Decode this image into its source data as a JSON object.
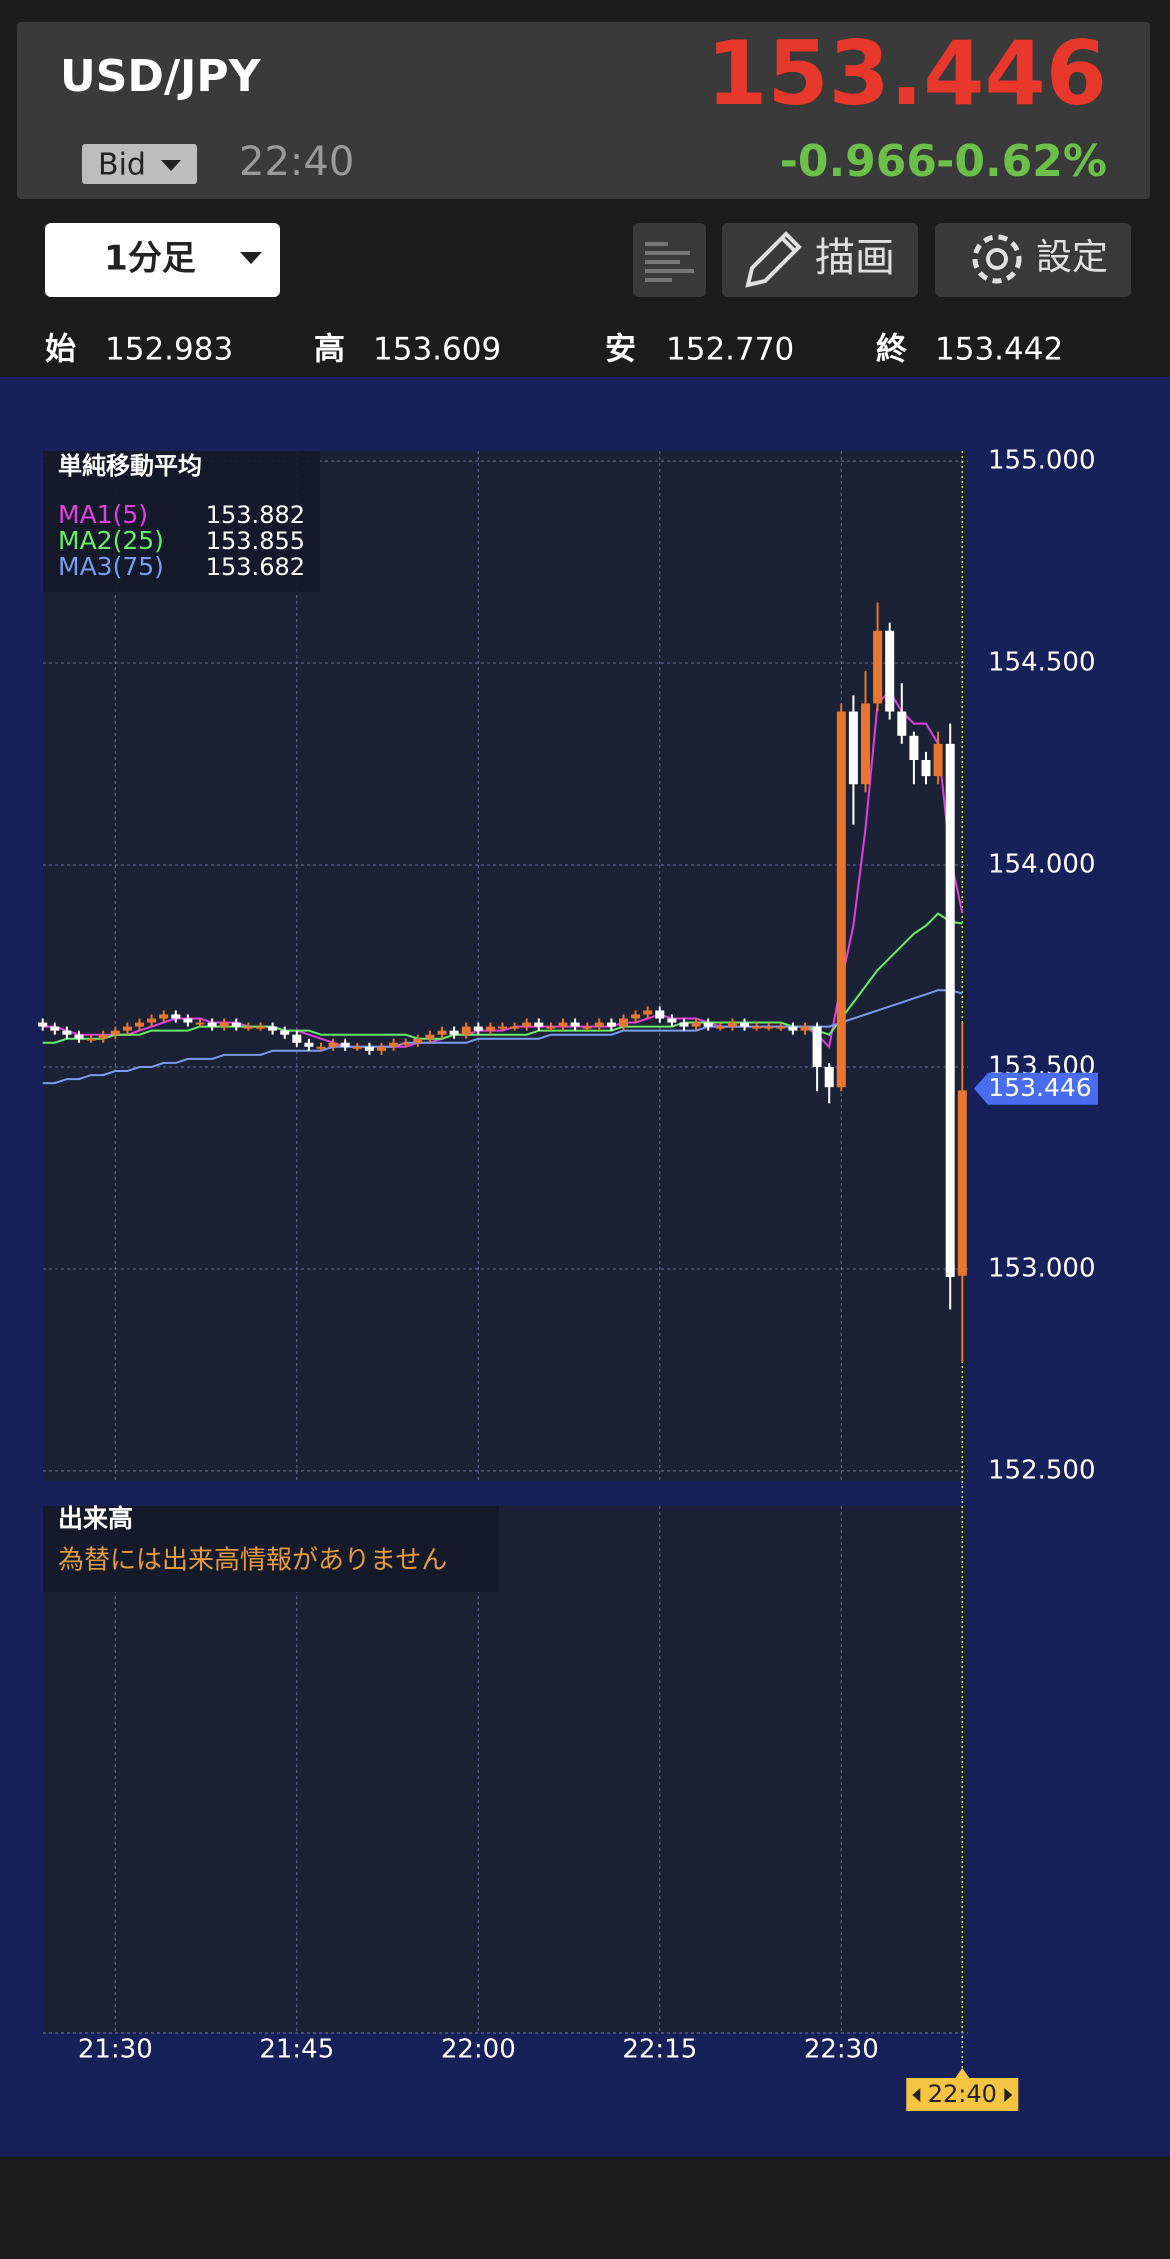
{
  "header": {
    "symbol": "USD/JPY",
    "price": 153.446,
    "price_type": "Bid",
    "time": "22:40",
    "change": -0.966,
    "change_pct": "-0.62%"
  },
  "toolbar": {
    "timeframe": "1分足",
    "draw": "描画",
    "settings": "設定"
  },
  "ohlc_summary": [
    {
      "label": "始",
      "value": "152.983"
    },
    {
      "label": "高",
      "value": "153.609"
    },
    {
      "label": "安",
      "value": "152.770"
    },
    {
      "label": "終",
      "value": "153.442"
    }
  ],
  "chart_data": {
    "type": "candlestick",
    "indicator_title": "単純移動平均",
    "categories": [
      null,
      null,
      null,
      null,
      null,
      null,
      "21:30",
      null,
      null,
      null,
      null,
      null,
      null,
      null,
      null,
      null,
      null,
      null,
      null,
      null,
      null,
      "21:45",
      null,
      null,
      null,
      null,
      null,
      null,
      null,
      null,
      null,
      null,
      null,
      null,
      null,
      null,
      "22:00",
      null,
      null,
      null,
      null,
      null,
      null,
      null,
      null,
      null,
      null,
      null,
      null,
      null,
      null,
      "22:15",
      null,
      null,
      null,
      null,
      null,
      null,
      null,
      null,
      null,
      null,
      null,
      null,
      null,
      null,
      "22:30",
      null,
      null,
      null,
      null,
      null,
      null,
      null,
      null,
      null,
      "22:40"
    ],
    "open": [
      153.61,
      153.6,
      153.59,
      153.58,
      153.57,
      153.57,
      153.58,
      153.59,
      153.6,
      153.61,
      153.62,
      153.63,
      153.62,
      153.61,
      153.61,
      153.6,
      153.61,
      153.6,
      153.6,
      153.6,
      153.59,
      153.58,
      153.56,
      153.55,
      153.55,
      153.56,
      153.55,
      153.55,
      153.54,
      153.55,
      153.56,
      153.56,
      153.57,
      153.58,
      153.59,
      153.58,
      153.6,
      153.59,
      153.6,
      153.6,
      153.6,
      153.61,
      153.6,
      153.6,
      153.61,
      153.6,
      153.6,
      153.61,
      153.6,
      153.62,
      153.63,
      153.64,
      153.62,
      153.61,
      153.6,
      153.61,
      153.6,
      153.6,
      153.61,
      153.6,
      153.6,
      153.6,
      153.6,
      153.59,
      153.6,
      153.5,
      153.45,
      154.38,
      154.2,
      154.4,
      154.58,
      154.38,
      154.32,
      154.26,
      154.22,
      154.3,
      152.983
    ],
    "high": [
      153.62,
      153.61,
      153.6,
      153.59,
      153.58,
      153.59,
      153.6,
      153.61,
      153.62,
      153.63,
      153.64,
      153.64,
      153.63,
      153.62,
      153.62,
      153.62,
      153.62,
      153.61,
      153.61,
      153.61,
      153.6,
      153.59,
      153.57,
      153.56,
      153.57,
      153.57,
      153.56,
      153.56,
      153.56,
      153.57,
      153.57,
      153.58,
      153.59,
      153.6,
      153.6,
      153.61,
      153.61,
      153.61,
      153.61,
      153.61,
      153.62,
      153.62,
      153.61,
      153.62,
      153.62,
      153.61,
      153.62,
      153.62,
      153.63,
      153.64,
      153.65,
      153.65,
      153.63,
      153.62,
      153.62,
      153.62,
      153.61,
      153.62,
      153.62,
      153.61,
      153.61,
      153.61,
      153.61,
      153.61,
      153.61,
      153.51,
      154.4,
      154.42,
      154.48,
      154.65,
      154.6,
      154.45,
      154.33,
      154.28,
      154.33,
      154.35,
      153.609
    ],
    "low": [
      153.59,
      153.58,
      153.57,
      153.56,
      153.56,
      153.56,
      153.57,
      153.58,
      153.59,
      153.6,
      153.61,
      153.61,
      153.6,
      153.6,
      153.59,
      153.59,
      153.59,
      153.59,
      153.59,
      153.58,
      153.57,
      153.55,
      153.54,
      153.54,
      153.54,
      153.54,
      153.54,
      153.53,
      153.53,
      153.54,
      153.55,
      153.55,
      153.56,
      153.57,
      153.57,
      153.57,
      153.58,
      153.58,
      153.59,
      153.59,
      153.59,
      153.59,
      153.59,
      153.59,
      153.59,
      153.59,
      153.59,
      153.59,
      153.59,
      153.61,
      153.62,
      153.61,
      153.6,
      153.59,
      153.59,
      153.59,
      153.59,
      153.59,
      153.59,
      153.59,
      153.59,
      153.59,
      153.58,
      153.58,
      153.44,
      153.41,
      153.44,
      154.1,
      154.18,
      154.38,
      154.36,
      154.3,
      154.2,
      154.2,
      154.2,
      152.9,
      152.77
    ],
    "close": [
      153.6,
      153.59,
      153.58,
      153.57,
      153.57,
      153.58,
      153.59,
      153.6,
      153.61,
      153.62,
      153.63,
      153.62,
      153.61,
      153.61,
      153.6,
      153.61,
      153.6,
      153.6,
      153.6,
      153.59,
      153.58,
      153.56,
      153.55,
      153.55,
      153.56,
      153.55,
      153.55,
      153.54,
      153.55,
      153.56,
      153.56,
      153.57,
      153.58,
      153.59,
      153.58,
      153.6,
      153.59,
      153.6,
      153.6,
      153.6,
      153.61,
      153.6,
      153.6,
      153.61,
      153.6,
      153.6,
      153.61,
      153.6,
      153.62,
      153.63,
      153.64,
      153.62,
      153.61,
      153.6,
      153.61,
      153.6,
      153.6,
      153.61,
      153.6,
      153.6,
      153.6,
      153.6,
      153.59,
      153.6,
      153.5,
      153.45,
      154.38,
      154.2,
      154.4,
      154.58,
      154.38,
      154.32,
      154.26,
      154.22,
      154.3,
      152.98,
      153.442
    ],
    "up_color": "#e8762e",
    "down_color": "#ffffff",
    "series": [
      {
        "name": "MA1(5)",
        "color": "#e040e0",
        "values": [
          153.6,
          153.6,
          153.59,
          153.58,
          153.58,
          153.58,
          153.58,
          153.58,
          153.59,
          153.6,
          153.61,
          153.62,
          153.62,
          153.62,
          153.61,
          153.61,
          153.61,
          153.6,
          153.6,
          153.6,
          153.59,
          153.59,
          153.58,
          153.57,
          153.56,
          153.55,
          153.55,
          153.55,
          153.55,
          153.55,
          153.55,
          153.56,
          153.56,
          153.57,
          153.58,
          153.58,
          153.59,
          153.59,
          153.59,
          153.6,
          153.6,
          153.6,
          153.6,
          153.6,
          153.6,
          153.6,
          153.6,
          153.6,
          153.61,
          153.61,
          153.62,
          153.63,
          153.62,
          153.62,
          153.62,
          153.61,
          153.6,
          153.6,
          153.6,
          153.6,
          153.6,
          153.6,
          153.6,
          153.6,
          153.58,
          153.55,
          153.71,
          153.85,
          154.09,
          154.4,
          154.43,
          154.38,
          154.35,
          154.35,
          154.3,
          154.02,
          153.882
        ]
      },
      {
        "name": "MA2(25)",
        "color": "#66ee66",
        "values": [
          153.56,
          153.56,
          153.57,
          153.57,
          153.57,
          153.57,
          153.58,
          153.58,
          153.58,
          153.59,
          153.59,
          153.59,
          153.59,
          153.6,
          153.6,
          153.6,
          153.6,
          153.6,
          153.6,
          153.6,
          153.59,
          153.59,
          153.59,
          153.58,
          153.58,
          153.58,
          153.58,
          153.58,
          153.58,
          153.58,
          153.58,
          153.57,
          153.57,
          153.57,
          153.58,
          153.58,
          153.58,
          153.58,
          153.58,
          153.58,
          153.58,
          153.59,
          153.59,
          153.59,
          153.59,
          153.59,
          153.59,
          153.59,
          153.6,
          153.6,
          153.6,
          153.6,
          153.6,
          153.61,
          153.61,
          153.61,
          153.61,
          153.61,
          153.61,
          153.61,
          153.61,
          153.61,
          153.6,
          153.6,
          153.59,
          153.58,
          153.62,
          153.66,
          153.7,
          153.74,
          153.77,
          153.8,
          153.83,
          153.85,
          153.88,
          153.86,
          153.855
        ]
      },
      {
        "name": "MA3(75)",
        "color": "#7a9cf0",
        "values": [
          153.46,
          153.46,
          153.47,
          153.47,
          153.48,
          153.48,
          153.49,
          153.49,
          153.5,
          153.5,
          153.51,
          153.51,
          153.52,
          153.52,
          153.52,
          153.53,
          153.53,
          153.53,
          153.53,
          153.54,
          153.54,
          153.54,
          153.54,
          153.54,
          153.55,
          153.55,
          153.55,
          153.55,
          153.55,
          153.55,
          153.56,
          153.56,
          153.56,
          153.56,
          153.56,
          153.56,
          153.57,
          153.57,
          153.57,
          153.57,
          153.57,
          153.57,
          153.58,
          153.58,
          153.58,
          153.58,
          153.58,
          153.58,
          153.59,
          153.59,
          153.59,
          153.59,
          153.59,
          153.59,
          153.59,
          153.6,
          153.6,
          153.6,
          153.6,
          153.6,
          153.6,
          153.6,
          153.6,
          153.6,
          153.6,
          153.6,
          153.61,
          153.62,
          153.63,
          153.64,
          153.65,
          153.66,
          153.67,
          153.68,
          153.69,
          153.69,
          153.682
        ]
      }
    ],
    "ylim": [
      152.475,
      155.025
    ],
    "yticks": [
      {
        "value": 155,
        "label": "155.000"
      },
      {
        "value": 154.5,
        "label": "154.500"
      },
      {
        "value": 154,
        "label": "154.000"
      },
      {
        "value": 153.5,
        "label": "153.500"
      },
      {
        "value": 153,
        "label": "153.000"
      },
      {
        "value": 152.5,
        "label": "152.500"
      }
    ],
    "grid": true
  },
  "volume_panel": {
    "title": "出来高",
    "message": "為替には出来高情報がありません"
  }
}
